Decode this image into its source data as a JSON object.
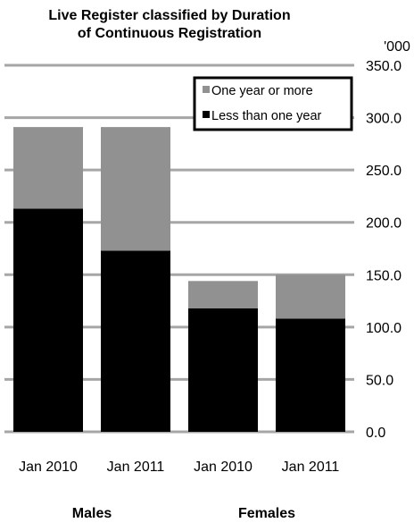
{
  "chart_data": {
    "type": "bar",
    "stacked": true,
    "title_lines": [
      "Live Register classified by Duration",
      "of Continuous Registration"
    ],
    "unit_label": "'000",
    "categories": [
      "Jan 2010",
      "Jan 2011",
      "Jan 2010",
      "Jan 2011"
    ],
    "groups": [
      {
        "label": "Males",
        "categories": [
          0,
          1
        ]
      },
      {
        "label": "Females",
        "categories": [
          2,
          3
        ]
      }
    ],
    "series": [
      {
        "name": "Less than one year",
        "values": [
          213,
          173,
          118,
          108
        ],
        "color": "#000000"
      },
      {
        "name": "One year or more",
        "values": [
          78,
          118,
          26,
          42
        ],
        "color": "#919191"
      }
    ],
    "y_ticks": [
      "0.0",
      "50.0",
      "100.0",
      "150.0",
      "200.0",
      "250.0",
      "300.0",
      "350.0"
    ],
    "ylim": [
      0,
      350
    ],
    "y_axis_side": "right",
    "grid": true,
    "grid_color": "#a6a6a6",
    "legend_position": "top-right",
    "legend_order": [
      1,
      0
    ]
  }
}
